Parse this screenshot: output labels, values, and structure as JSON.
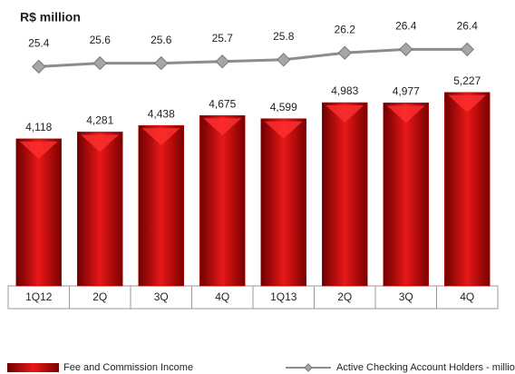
{
  "chart_data": {
    "type": "bar",
    "title": "R$ million",
    "categories": [
      "1Q12",
      "2Q",
      "3Q",
      "4Q",
      "1Q13",
      "2Q",
      "3Q",
      "4Q"
    ],
    "ylim": [
      600,
      5700
    ],
    "y2lim": [
      20,
      28
    ],
    "series": [
      {
        "name": "Fee and Commission Income",
        "type": "bar",
        "color": "#c00000",
        "values": [
          4118,
          4281,
          4438,
          4675,
          4599,
          4983,
          4977,
          5227
        ],
        "value_labels": [
          "4,118",
          "4,281",
          "4,438",
          "4,675",
          "4,599",
          "4,983",
          "4,977",
          "5,227"
        ]
      },
      {
        "name": "Active Checking Account Holders - million",
        "type": "line",
        "axis": "y2",
        "color": "#8c8c8c",
        "values": [
          25.4,
          25.6,
          25.6,
          25.7,
          25.8,
          26.2,
          26.4,
          26.4
        ]
      }
    ]
  }
}
